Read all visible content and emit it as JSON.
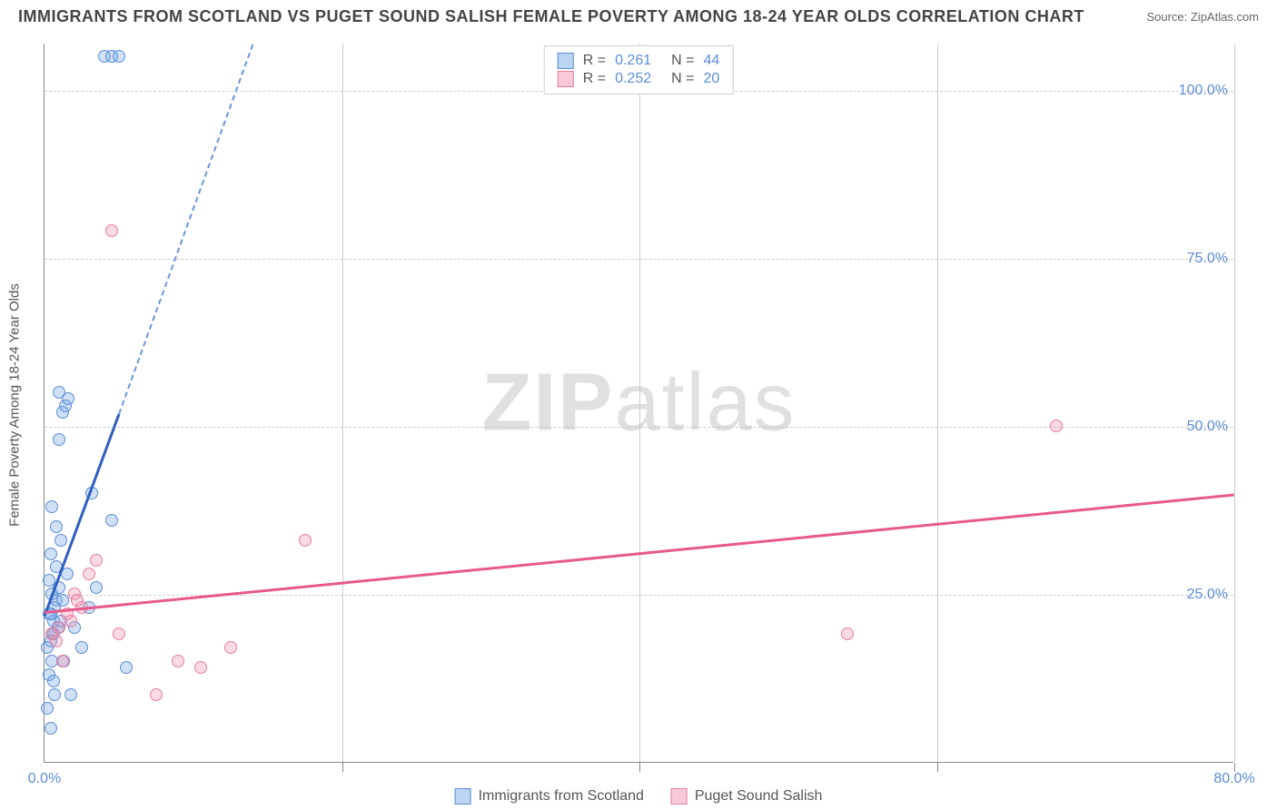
{
  "title": "IMMIGRANTS FROM SCOTLAND VS PUGET SOUND SALISH FEMALE POVERTY AMONG 18-24 YEAR OLDS CORRELATION CHART",
  "source": "Source: ZipAtlas.com",
  "ylabel": "Female Poverty Among 18-24 Year Olds",
  "watermark_a": "ZIP",
  "watermark_b": "atlas",
  "chart": {
    "type": "scatter",
    "xlim": [
      0,
      80
    ],
    "ylim": [
      0,
      107
    ],
    "xticks": [
      0,
      20,
      40,
      60,
      80
    ],
    "xtick_labels": [
      "0.0%",
      "",
      "",
      "",
      "80.0%"
    ],
    "yticks": [
      25,
      50,
      75,
      100
    ],
    "ytick_labels": [
      "25.0%",
      "50.0%",
      "75.0%",
      "100.0%"
    ],
    "grid_color": "#cccccc",
    "background": "#ffffff"
  },
  "series": {
    "blue": {
      "label": "Immigrants from Scotland",
      "color_fill": "rgba(120,170,230,0.35)",
      "color_stroke": "#5b8dd6",
      "R": "0.261",
      "N": "44",
      "trend": {
        "x1": 0,
        "y1": 22,
        "x2_solid": 5,
        "y2_solid": 52,
        "x2_dash": 14,
        "y2_dash": 107
      },
      "points": [
        [
          0.3,
          22
        ],
        [
          0.5,
          19
        ],
        [
          0.6,
          21
        ],
        [
          0.8,
          24
        ],
        [
          0.4,
          18
        ],
        [
          0.7,
          23
        ],
        [
          1.0,
          26
        ],
        [
          0.2,
          17
        ],
        [
          0.5,
          15
        ],
        [
          0.9,
          20
        ],
        [
          1.2,
          24
        ],
        [
          0.3,
          13
        ],
        [
          0.6,
          12
        ],
        [
          1.5,
          28
        ],
        [
          0.4,
          31
        ],
        [
          0.8,
          35
        ],
        [
          1.1,
          33
        ],
        [
          2.0,
          20
        ],
        [
          2.5,
          17
        ],
        [
          3.0,
          23
        ],
        [
          3.5,
          26
        ],
        [
          0.5,
          38
        ],
        [
          0.7,
          10
        ],
        [
          1.3,
          15
        ],
        [
          0.2,
          8
        ],
        [
          0.4,
          5
        ],
        [
          1.8,
          10
        ],
        [
          4.5,
          36
        ],
        [
          3.2,
          40
        ],
        [
          1.0,
          48
        ],
        [
          1.2,
          52
        ],
        [
          1.4,
          53
        ],
        [
          1.6,
          54
        ],
        [
          1.0,
          55
        ],
        [
          4.0,
          105
        ],
        [
          4.5,
          105
        ],
        [
          5.0,
          105
        ],
        [
          0.5,
          25
        ],
        [
          0.3,
          27
        ],
        [
          0.8,
          29
        ],
        [
          1.1,
          21
        ],
        [
          0.6,
          19
        ],
        [
          0.4,
          22
        ],
        [
          5.5,
          14
        ]
      ]
    },
    "pink": {
      "label": "Puget Sound Salish",
      "color_fill": "rgba(240,150,180,0.35)",
      "color_stroke": "#e87da0",
      "R": "0.252",
      "N": "20",
      "trend": {
        "x1": 0,
        "y1": 22.5,
        "x2": 80,
        "y2": 40
      },
      "points": [
        [
          1.0,
          20
        ],
        [
          1.5,
          22
        ],
        [
          2.0,
          25
        ],
        [
          2.5,
          23
        ],
        [
          3.0,
          28
        ],
        [
          0.8,
          18
        ],
        [
          1.2,
          15
        ],
        [
          4.5,
          79
        ],
        [
          9.0,
          15
        ],
        [
          10.5,
          14
        ],
        [
          12.5,
          17
        ],
        [
          7.5,
          10
        ],
        [
          17.5,
          33
        ],
        [
          5.0,
          19
        ],
        [
          3.5,
          30
        ],
        [
          54,
          19
        ],
        [
          68,
          50
        ],
        [
          1.8,
          21
        ],
        [
          2.2,
          24
        ],
        [
          0.5,
          19
        ]
      ]
    }
  },
  "legend_top": {
    "r_label": "R = ",
    "n_label": "N = "
  }
}
